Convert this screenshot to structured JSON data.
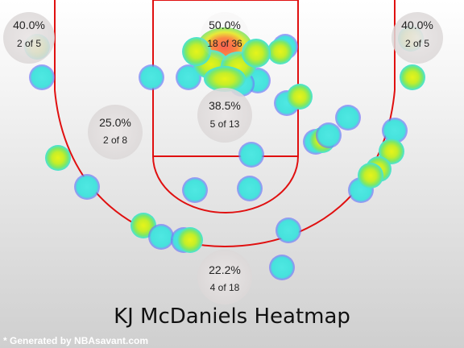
{
  "title": "KJ McDaniels Heatmap",
  "footer": "* Generated by NBAsavant.com",
  "colors": {
    "court_lines": "#e01010",
    "zone_bubble": "#e4e0e0",
    "cold": "#45e6e0",
    "warm": "#d8f020",
    "hot": "#ff5a3a",
    "halo": "#7a5cff"
  },
  "chart_data": {
    "type": "heatmap",
    "title": "KJ McDaniels Heatmap",
    "zones": [
      {
        "id": "left-corner",
        "pct": "40.0%",
        "label": "2 of 5",
        "made": 2,
        "attempts": 5
      },
      {
        "id": "restricted-area",
        "pct": "50.0%",
        "label": "18 of 36",
        "made": 18,
        "attempts": 36
      },
      {
        "id": "right-corner",
        "pct": "40.0%",
        "label": "2 of 5",
        "made": 2,
        "attempts": 5
      },
      {
        "id": "left-midrange",
        "pct": "25.0%",
        "label": "2 of 8",
        "made": 2,
        "attempts": 8
      },
      {
        "id": "paint",
        "pct": "38.5%",
        "label": "5 of 13",
        "made": 5,
        "attempts": 13
      },
      {
        "id": "top-of-key-three",
        "pct": "22.2%",
        "label": "4 of 18",
        "made": 4,
        "attempts": 18
      }
    ]
  }
}
